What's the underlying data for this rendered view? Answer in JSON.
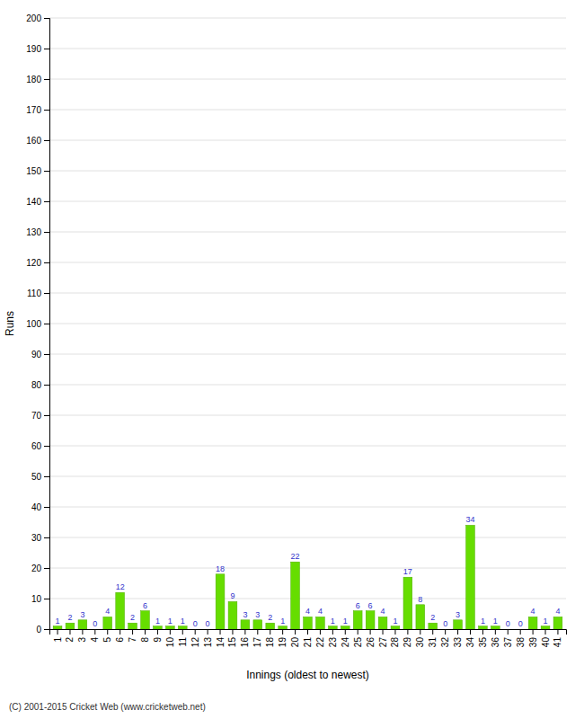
{
  "chart_data": {
    "type": "bar",
    "categories": [
      "1",
      "2",
      "3",
      "4",
      "5",
      "6",
      "7",
      "8",
      "9",
      "10",
      "11",
      "12",
      "13",
      "14",
      "15",
      "16",
      "17",
      "18",
      "19",
      "20",
      "21",
      "22",
      "23",
      "24",
      "25",
      "26",
      "27",
      "28",
      "29",
      "30",
      "31",
      "32",
      "33",
      "34",
      "35",
      "36",
      "37",
      "38",
      "39",
      "40",
      "41"
    ],
    "values": [
      1,
      2,
      3,
      0,
      4,
      12,
      2,
      6,
      1,
      1,
      1,
      0,
      0,
      18,
      9,
      3,
      3,
      2,
      1,
      22,
      4,
      4,
      1,
      1,
      6,
      6,
      4,
      1,
      17,
      8,
      2,
      0,
      3,
      34,
      1,
      1,
      0,
      0,
      4,
      1,
      4
    ],
    "color": "#66dd00",
    "xlabel": "Innings (oldest to newest)",
    "ylabel": "Runs",
    "ylim": [
      0,
      200
    ],
    "yticks": [
      0,
      10,
      20,
      30,
      40,
      50,
      60,
      70,
      80,
      90,
      100,
      110,
      120,
      130,
      140,
      150,
      160,
      170,
      180,
      190,
      200
    ],
    "grid": true,
    "data_labels": true,
    "annotations": [
      "(C) 2001-2015 Cricket Web (www.cricketweb.net)"
    ]
  }
}
